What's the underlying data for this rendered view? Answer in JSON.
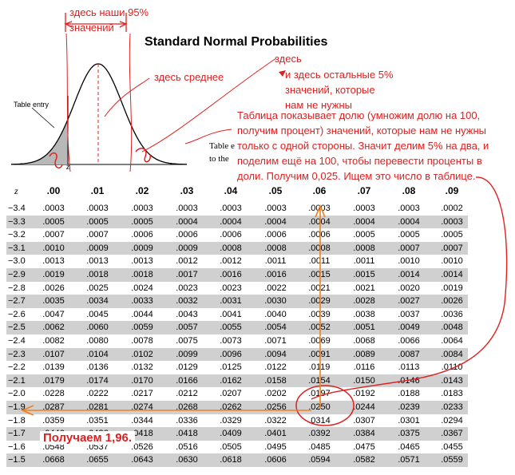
{
  "title": "Standard Normal Probabilities",
  "figure": {
    "table_entry_label": "Table entry",
    "z_label": "z",
    "cut_text_1": "Table e",
    "cut_text_2": "to the"
  },
  "annotations": {
    "our_95": "здесь наши 95%",
    "our_95_2": "значений",
    "mean": "здесь среднее",
    "here": "здесь",
    "rest_5_1": "и здесь остальные 5%",
    "rest_5_2": "значений, которые",
    "rest_5_3": "нам не нужны",
    "explanation_1": "Таблица показывает долю (умножим долю на 100,",
    "explanation_2": "получим процент) значений, которые нам не нужны",
    "explanation_3": "только с одной стороны. Значит делим 5% на два, и",
    "explanation_4": "поделим ещё на 100, чтобы перевести проценты в",
    "explanation_5": "доли. Получим 0,025. Ищем это число в таблице.",
    "result": "Получаем 1,96."
  },
  "table": {
    "z_header": "z",
    "columns": [
      ".00",
      ".01",
      ".02",
      ".03",
      ".04",
      ".05",
      ".06",
      ".07",
      ".08",
      ".09"
    ],
    "rows": [
      {
        "z": "−3.4",
        "v": [
          ".0003",
          ".0003",
          ".0003",
          ".0003",
          ".0003",
          ".0003",
          ".0003",
          ".0003",
          ".0003",
          ".0002"
        ]
      },
      {
        "z": "−3.3",
        "v": [
          ".0005",
          ".0005",
          ".0005",
          ".0004",
          ".0004",
          ".0004",
          ".0004",
          ".0004",
          ".0004",
          ".0003"
        ]
      },
      {
        "z": "−3.2",
        "v": [
          ".0007",
          ".0007",
          ".0006",
          ".0006",
          ".0006",
          ".0006",
          ".0006",
          ".0005",
          ".0005",
          ".0005"
        ]
      },
      {
        "z": "−3.1",
        "v": [
          ".0010",
          ".0009",
          ".0009",
          ".0009",
          ".0008",
          ".0008",
          ".0008",
          ".0008",
          ".0007",
          ".0007"
        ]
      },
      {
        "z": "−3.0",
        "v": [
          ".0013",
          ".0013",
          ".0013",
          ".0012",
          ".0012",
          ".0011",
          ".0011",
          ".0011",
          ".0010",
          ".0010"
        ]
      },
      {
        "z": "−2.9",
        "v": [
          ".0019",
          ".0018",
          ".0018",
          ".0017",
          ".0016",
          ".0016",
          ".0015",
          ".0015",
          ".0014",
          ".0014"
        ]
      },
      {
        "z": "−2.8",
        "v": [
          ".0026",
          ".0025",
          ".0024",
          ".0023",
          ".0023",
          ".0022",
          ".0021",
          ".0021",
          ".0020",
          ".0019"
        ]
      },
      {
        "z": "−2.7",
        "v": [
          ".0035",
          ".0034",
          ".0033",
          ".0032",
          ".0031",
          ".0030",
          ".0029",
          ".0028",
          ".0027",
          ".0026"
        ]
      },
      {
        "z": "−2.6",
        "v": [
          ".0047",
          ".0045",
          ".0044",
          ".0043",
          ".0041",
          ".0040",
          ".0039",
          ".0038",
          ".0037",
          ".0036"
        ]
      },
      {
        "z": "−2.5",
        "v": [
          ".0062",
          ".0060",
          ".0059",
          ".0057",
          ".0055",
          ".0054",
          ".0052",
          ".0051",
          ".0049",
          ".0048"
        ]
      },
      {
        "z": "−2.4",
        "v": [
          ".0082",
          ".0080",
          ".0078",
          ".0075",
          ".0073",
          ".0071",
          ".0069",
          ".0068",
          ".0066",
          ".0064"
        ]
      },
      {
        "z": "−2.3",
        "v": [
          ".0107",
          ".0104",
          ".0102",
          ".0099",
          ".0096",
          ".0094",
          ".0091",
          ".0089",
          ".0087",
          ".0084"
        ]
      },
      {
        "z": "−2.2",
        "v": [
          ".0139",
          ".0136",
          ".0132",
          ".0129",
          ".0125",
          ".0122",
          ".0119",
          ".0116",
          ".0113",
          ".0110"
        ]
      },
      {
        "z": "−2.1",
        "v": [
          ".0179",
          ".0174",
          ".0170",
          ".0166",
          ".0162",
          ".0158",
          ".0154",
          ".0150",
          ".0146",
          ".0143"
        ]
      },
      {
        "z": "−2.0",
        "v": [
          ".0228",
          ".0222",
          ".0217",
          ".0212",
          ".0207",
          ".0202",
          ".0197",
          ".0192",
          ".0188",
          ".0183"
        ]
      },
      {
        "z": "−1.9",
        "v": [
          ".0287",
          ".0281",
          ".0274",
          ".0268",
          ".0262",
          ".0256",
          ".0250",
          ".0244",
          ".0239",
          ".0233"
        ]
      },
      {
        "z": "−1.8",
        "v": [
          ".0359",
          ".0351",
          ".0344",
          ".0336",
          ".0329",
          ".0322",
          ".0314",
          ".0307",
          ".0301",
          ".0294"
        ]
      },
      {
        "z": "−1.7",
        "v": [
          ".0446",
          ".0436",
          ".0418",
          ".0418",
          ".0409",
          ".0401",
          ".0392",
          ".0384",
          ".0375",
          ".0367"
        ]
      },
      {
        "z": "−1.6",
        "v": [
          ".0548",
          ".0537",
          ".0526",
          ".0516",
          ".0505",
          ".0495",
          ".0485",
          ".0475",
          ".0465",
          ".0455"
        ]
      },
      {
        "z": "−1.5",
        "v": [
          ".0668",
          ".0655",
          ".0643",
          ".0630",
          ".0618",
          ".0606",
          ".0594",
          ".0582",
          ".0571",
          ".0559"
        ]
      }
    ]
  }
}
